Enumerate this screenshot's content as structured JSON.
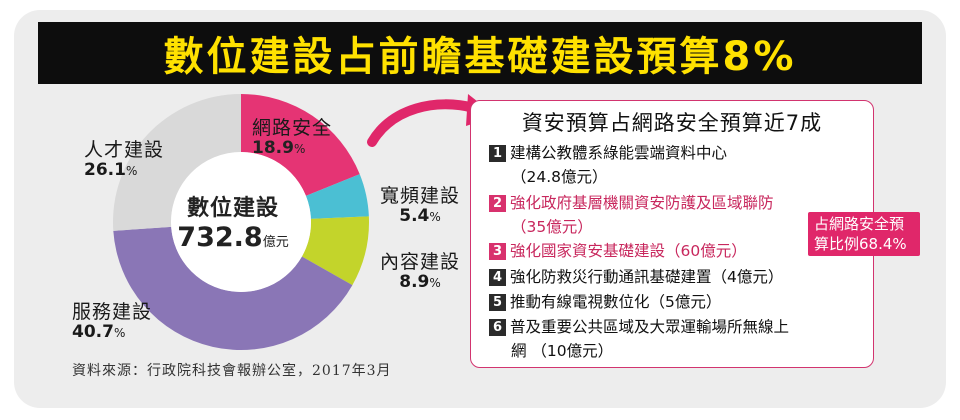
{
  "title": "數位建設占前瞻基礎建設預算8%",
  "source_note": "資料來源：行政院科技會報辦公室，2017年3月",
  "colors": {
    "title_bg": "#0d0d0d",
    "title_text": "#ffe100",
    "accent_pink": "#e0276a"
  },
  "chart_data": {
    "type": "pie",
    "center_label": {
      "name": "數位建設",
      "value": "732.8",
      "unit": "億元"
    },
    "unit": "%",
    "slices": [
      {
        "label": "網路安全",
        "value": 18.9,
        "color": "#e53474"
      },
      {
        "label": "寬頻建設",
        "value": 5.4,
        "color": "#4bbfd3"
      },
      {
        "label": "內容建設",
        "value": 8.9,
        "color": "#c3d42b"
      },
      {
        "label": "服務建設",
        "value": 40.7,
        "color": "#8a76b6"
      },
      {
        "label": "人才建設",
        "value": 26.1,
        "color": "#d9d9d9"
      }
    ]
  },
  "panel": {
    "title": "資安預算占網路安全預算近7成",
    "items": [
      {
        "num": "1",
        "text": "建構公教體系綠能雲端資料中心",
        "sub": "（24.8億元）"
      },
      {
        "num": "2",
        "text": "強化政府基層機關資安防護及區域聯防",
        "sub": "（35億元）"
      },
      {
        "num": "3",
        "text": "強化國家資安基礎建設（60億元）",
        "sub": ""
      },
      {
        "num": "4",
        "text": "強化防救災行動通訊基礎建置（4億元）",
        "sub": ""
      },
      {
        "num": "5",
        "text": "推動有線電視數位化（5億元）",
        "sub": ""
      },
      {
        "num": "6",
        "text": "普及重要公共區域及大眾運輸場所無線上",
        "sub": "網 （10億元）"
      }
    ],
    "callout_line1": "占網路安全預",
    "callout_line2": "算比例68.4%"
  }
}
